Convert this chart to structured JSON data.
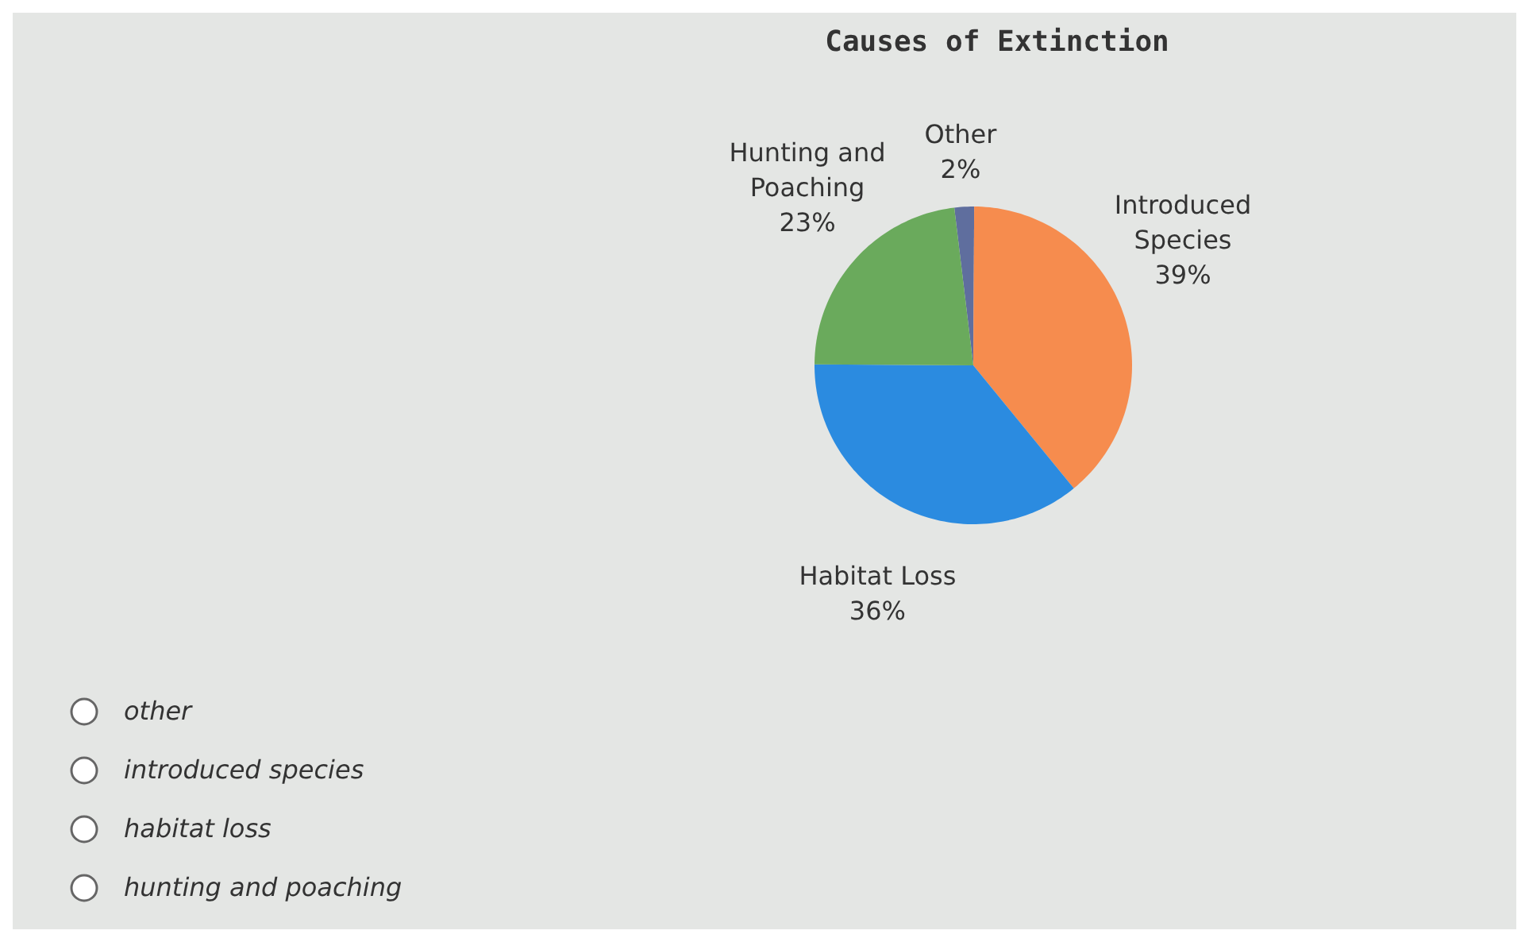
{
  "chart_data": {
    "type": "pie",
    "title": "Causes of Extinction",
    "categories": [
      "Other",
      "Introduced Species",
      "Habitat Loss",
      "Hunting and Poaching"
    ],
    "values": [
      2,
      39,
      36,
      23
    ],
    "colors": [
      "#5f6e9e",
      "#f68c4e",
      "#2b8be0",
      "#6aaa5c"
    ],
    "value_labels": [
      "2%",
      "39%",
      "36%",
      "23%"
    ],
    "annotations": [
      "other",
      "introduced species",
      "habitat loss",
      "hunting and poaching"
    ]
  }
}
